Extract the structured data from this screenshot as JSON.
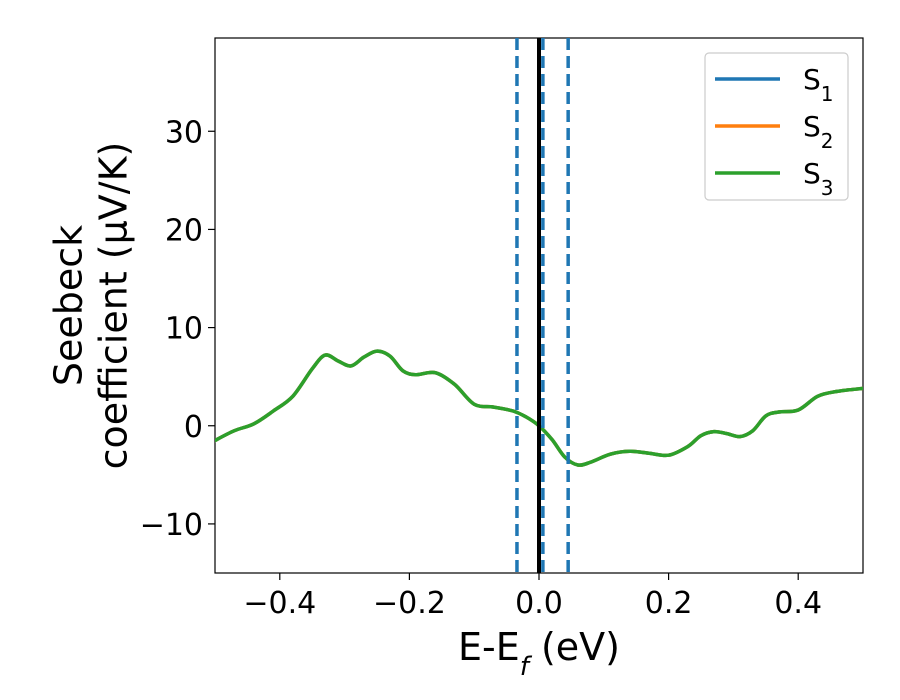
{
  "chart_data": {
    "type": "line",
    "xlabel": "E-E",
    "xlabel_sub": "f",
    "xlabel_unit": " (eV)",
    "ylabel_line1": "Seebeck",
    "ylabel_line2": "coefficient  (μV/K)",
    "xlim": [
      -0.5,
      0.5
    ],
    "ylim": [
      -15,
      39.5
    ],
    "xticks": [
      -0.4,
      -0.2,
      0.0,
      0.2,
      0.4
    ],
    "xtick_labels": [
      "−0.4",
      "−0.2",
      "0.0",
      "0.2",
      "0.4"
    ],
    "yticks": [
      -10,
      0,
      10,
      20,
      30
    ],
    "ytick_labels": [
      "−10",
      "0",
      "10",
      "20",
      "30"
    ],
    "legend_position": "top-right",
    "series": [
      {
        "name": "S",
        "sub": "1",
        "color": "#1f77b4",
        "style": "solid"
      },
      {
        "name": "S",
        "sub": "2",
        "color": "#ff7f0e",
        "style": "solid"
      },
      {
        "name": "S",
        "sub": "3",
        "color": "#2ca02c",
        "style": "solid"
      }
    ],
    "curve": {
      "x": [
        -0.5,
        -0.47,
        -0.44,
        -0.41,
        -0.38,
        -0.35,
        -0.33,
        -0.31,
        -0.29,
        -0.27,
        -0.25,
        -0.23,
        -0.21,
        -0.19,
        -0.16,
        -0.13,
        -0.1,
        -0.07,
        -0.04,
        -0.02,
        0.0,
        0.02,
        0.04,
        0.06,
        0.08,
        0.11,
        0.14,
        0.17,
        0.2,
        0.23,
        0.25,
        0.27,
        0.29,
        0.31,
        0.33,
        0.35,
        0.37,
        0.4,
        0.43,
        0.46,
        0.5
      ],
      "y": [
        -1.5,
        -0.5,
        0.2,
        1.5,
        3.0,
        5.8,
        7.2,
        6.6,
        6.1,
        7.0,
        7.6,
        7.1,
        5.6,
        5.2,
        5.4,
        4.2,
        2.2,
        1.9,
        1.5,
        0.9,
        0.0,
        -1.4,
        -3.2,
        -4.0,
        -3.7,
        -2.9,
        -2.6,
        -2.8,
        -3.0,
        -2.1,
        -1.0,
        -0.6,
        -0.8,
        -1.1,
        -0.5,
        1.0,
        1.4,
        1.6,
        3.0,
        3.5,
        3.8
      ]
    },
    "vlines": [
      {
        "x": -0.034,
        "color": "#1f77b4",
        "style": "dashed"
      },
      {
        "x": 0.0,
        "color": "#000000",
        "style": "solid"
      },
      {
        "x": 0.006,
        "color": "#1f77b4",
        "style": "dashed"
      },
      {
        "x": 0.045,
        "color": "#1f77b4",
        "style": "dashed"
      }
    ]
  }
}
